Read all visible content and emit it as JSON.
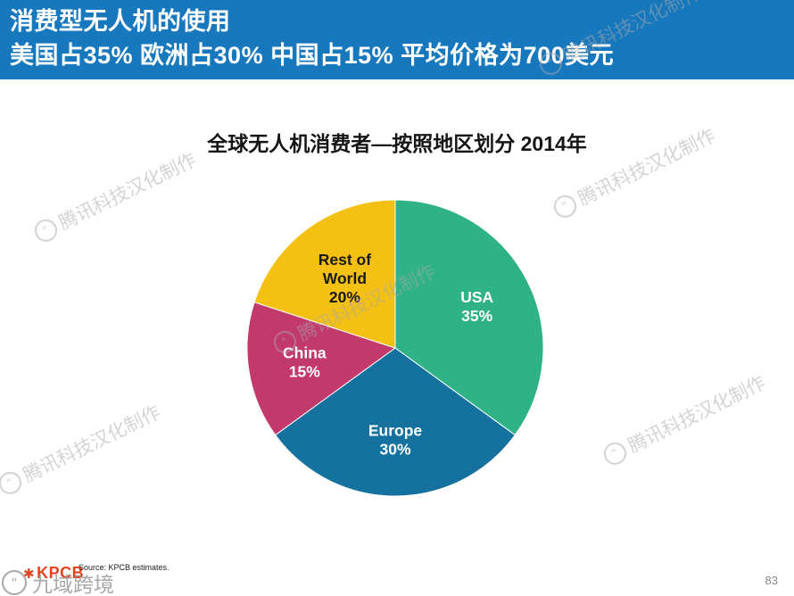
{
  "header": {
    "line1": "消费型无人机的使用",
    "line2": "美国占35% 欧洲占30% 中国占15% 平均价格为700美元",
    "bg_color": "#1778BE",
    "text_color": "#FFFFFF"
  },
  "chart_data": {
    "type": "pie",
    "title": "全球无人机消费者—按照地区划分 2014年",
    "year": "2014",
    "unit": "%",
    "start_angle_deg": 0,
    "direction": "clockwise",
    "legend": "none",
    "labels_on_slices": true,
    "slices": [
      {
        "label": "USA",
        "label_lines": [
          "USA"
        ],
        "value": 35,
        "pct_label": "35%",
        "color": "#2FB286",
        "text_color": "#FFFFFF"
      },
      {
        "label": "Europe",
        "label_lines": [
          "Europe"
        ],
        "value": 30,
        "pct_label": "30%",
        "color": "#15719E",
        "text_color": "#FFFFFF"
      },
      {
        "label": "China",
        "label_lines": [
          "China"
        ],
        "value": 15,
        "pct_label": "15%",
        "color": "#C23A6C",
        "text_color": "#FFFFFF"
      },
      {
        "label": "Rest of World",
        "label_lines": [
          "Rest of",
          "World"
        ],
        "value": 20,
        "pct_label": "20%",
        "color": "#F3C013",
        "text_color": "#1A1A1A",
        "label_radius": 0.58
      }
    ]
  },
  "footer": {
    "logo_text": "KPCB",
    "logo_color": "#E2441E",
    "source_text": "Source: KPCB estimates.",
    "page_number": "83"
  },
  "watermark": {
    "text": "腾讯科技汉化制作",
    "icon_glyph": "“",
    "corner_text": "九域跨境"
  }
}
